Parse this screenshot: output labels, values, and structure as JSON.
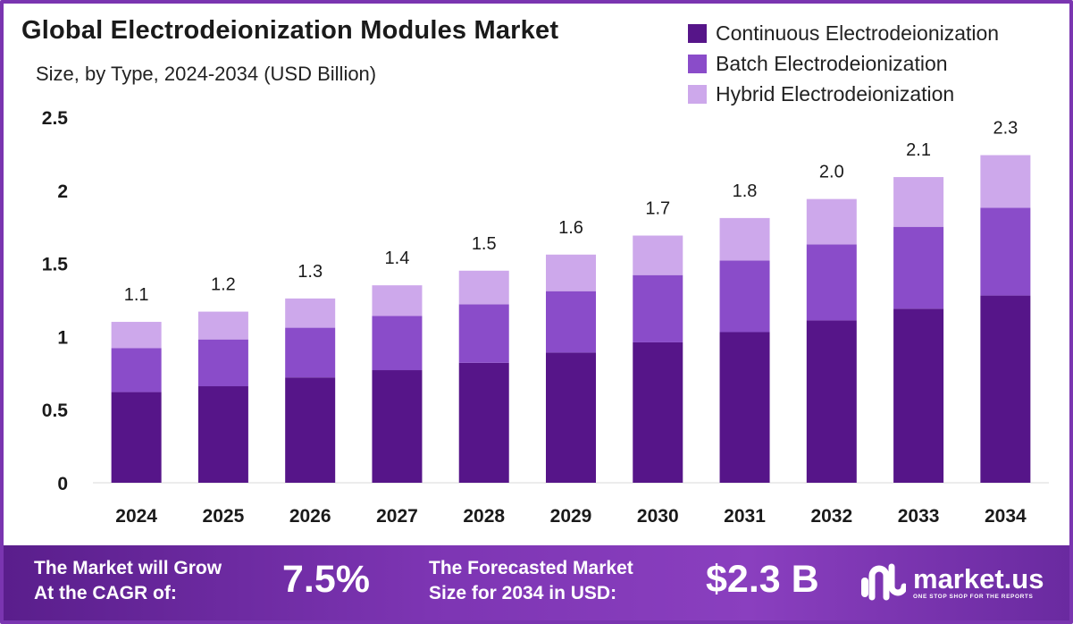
{
  "title": "Global Electrodeionization Modules Market",
  "subtitle": "Size, by Type, 2024-2034 (USD Billion)",
  "chart_data": {
    "type": "bar",
    "stacked": true,
    "categories": [
      "2024",
      "2025",
      "2026",
      "2027",
      "2028",
      "2029",
      "2030",
      "2031",
      "2032",
      "2033",
      "2034"
    ],
    "series": [
      {
        "name": "Continuous Electrodeionization",
        "color": "#561589",
        "values": [
          0.62,
          0.66,
          0.72,
          0.77,
          0.82,
          0.89,
          0.96,
          1.03,
          1.11,
          1.19,
          1.28
        ]
      },
      {
        "name": "Batch Electrodeionization",
        "color": "#8a4cc9",
        "values": [
          0.3,
          0.32,
          0.34,
          0.37,
          0.4,
          0.42,
          0.46,
          0.49,
          0.52,
          0.56,
          0.6
        ]
      },
      {
        "name": "Hybrid Electrodeionization",
        "color": "#cda8eb",
        "values": [
          0.18,
          0.19,
          0.2,
          0.21,
          0.23,
          0.25,
          0.27,
          0.29,
          0.31,
          0.34,
          0.36
        ]
      }
    ],
    "totals_labels": [
      "1.1",
      "1.2",
      "1.3",
      "1.4",
      "1.5",
      "1.6",
      "1.7",
      "1.8",
      "2.0",
      "2.1",
      "2.3"
    ],
    "ylim": [
      0,
      2.5
    ],
    "yticks": [
      "0",
      "0.5",
      "1",
      "1.5",
      "2",
      "2.5"
    ],
    "grid": false,
    "legend_position": "top-right",
    "xlabel": "",
    "ylabel": ""
  },
  "banner": {
    "cagr_text_line1": "The Market will Grow",
    "cagr_text_line2": "At the CAGR of:",
    "cagr_value": "7.5%",
    "forecast_text_line1": "The Forecasted Market",
    "forecast_text_line2": "Size for 2034 in USD:",
    "forecast_value": "$2.3 B",
    "logo_name": "market.us",
    "logo_tagline": "ONE STOP SHOP FOR THE REPORTS"
  }
}
